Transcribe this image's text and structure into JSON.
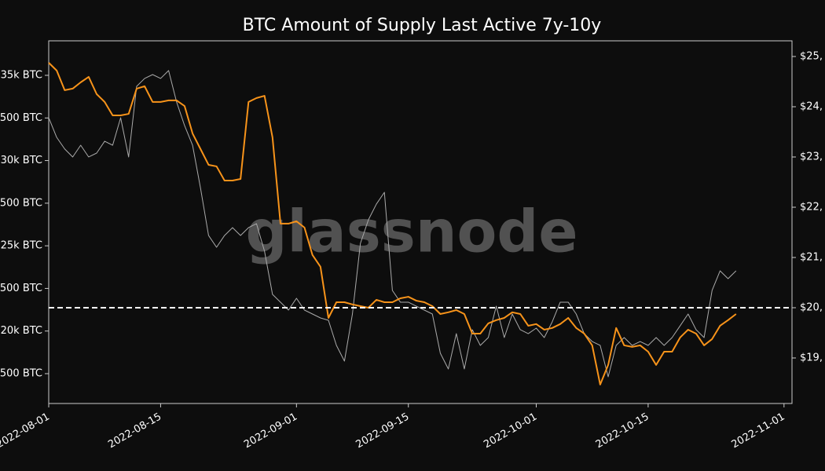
{
  "chart_data": {
    "type": "line",
    "title": "BTC Amount of Supply Last Active 7y-10y",
    "watermark": "glassnode",
    "x": [
      "2022-08-01",
      "2022-08-02",
      "2022-08-03",
      "2022-08-04",
      "2022-08-05",
      "2022-08-06",
      "2022-08-07",
      "2022-08-08",
      "2022-08-09",
      "2022-08-10",
      "2022-08-11",
      "2022-08-12",
      "2022-08-13",
      "2022-08-14",
      "2022-08-15",
      "2022-08-16",
      "2022-08-17",
      "2022-08-18",
      "2022-08-19",
      "2022-08-20",
      "2022-08-21",
      "2022-08-22",
      "2022-08-23",
      "2022-08-24",
      "2022-08-25",
      "2022-08-26",
      "2022-08-27",
      "2022-08-28",
      "2022-08-29",
      "2022-08-30",
      "2022-08-31",
      "2022-09-01",
      "2022-09-02",
      "2022-09-03",
      "2022-09-04",
      "2022-09-05",
      "2022-09-06",
      "2022-09-07",
      "2022-09-08",
      "2022-09-09",
      "2022-09-10",
      "2022-09-11",
      "2022-09-12",
      "2022-09-13",
      "2022-09-14",
      "2022-09-15",
      "2022-09-16",
      "2022-09-17",
      "2022-09-18",
      "2022-09-19",
      "2022-09-20",
      "2022-09-21",
      "2022-09-22",
      "2022-09-23",
      "2022-09-24",
      "2022-09-25",
      "2022-09-26",
      "2022-09-27",
      "2022-09-28",
      "2022-09-29",
      "2022-09-30",
      "2022-10-01",
      "2022-10-02",
      "2022-10-03",
      "2022-10-04",
      "2022-10-05",
      "2022-10-06",
      "2022-10-07",
      "2022-10-08",
      "2022-10-09",
      "2022-10-10",
      "2022-10-11",
      "2022-10-12",
      "2022-10-13",
      "2022-10-14",
      "2022-10-15",
      "2022-10-16",
      "2022-10-17",
      "2022-10-18",
      "2022-10-19",
      "2022-10-20",
      "2022-10-21",
      "2022-10-22",
      "2022-10-23",
      "2022-10-24",
      "2022-10-25",
      "2022-10-26"
    ],
    "xlim": [
      "2022-08-01",
      "2022-11-02"
    ],
    "xticks": [
      "2022-08-01",
      "2022-08-15",
      "2022-09-01",
      "2022-09-15",
      "2022-10-01",
      "2022-10-15",
      "2022-11-01"
    ],
    "ylim": [
      15750,
      37025
    ],
    "yticks": [
      {
        "value": 35000,
        "label": "35k BTC"
      },
      {
        "value": 32500,
        "label": "500 BTC"
      },
      {
        "value": 30000,
        "label": "30k BTC"
      },
      {
        "value": 27500,
        "label": "500 BTC"
      },
      {
        "value": 25000,
        "label": "25k BTC"
      },
      {
        "value": 22500,
        "label": "500 BTC"
      },
      {
        "value": 20000,
        "label": "20k BTC"
      },
      {
        "value": 17500,
        "label": "500 BTC"
      }
    ],
    "y2lim": [
      18094,
      25312
    ],
    "y2ticks": [
      {
        "value": 25000,
        "label": "$25,"
      },
      {
        "value": 24000,
        "label": "$24,"
      },
      {
        "value": 23000,
        "label": "$23,"
      },
      {
        "value": 22000,
        "label": "$22,"
      },
      {
        "value": 21000,
        "label": "$21,"
      },
      {
        "value": 20000,
        "label": "$20,"
      },
      {
        "value": 19000,
        "label": "$19,"
      }
    ],
    "reference_line": {
      "value": 20000,
      "axis": "y2",
      "color": "#ffffff"
    },
    "series": [
      {
        "color": "#aaaaaa",
        "axis": "y2",
        "values": [
          23781,
          23390,
          23160,
          23000,
          23234,
          23000,
          23078,
          23313,
          23234,
          23781,
          23000,
          24406,
          24563,
          24640,
          24563,
          24720,
          24094,
          23625,
          23234,
          22375,
          21438,
          21203,
          21438,
          21594,
          21438,
          21594,
          21672,
          21125,
          20266,
          20110,
          19953,
          20188,
          19953,
          19875,
          19797,
          19750,
          19250,
          18938,
          19875,
          21281,
          21750,
          22063,
          22297,
          20344,
          20110,
          20110,
          20031,
          19953,
          19875,
          19094,
          18781,
          19484,
          18781,
          19563,
          19250,
          19406,
          20031,
          19406,
          19875,
          19563,
          19484,
          19594,
          19406,
          19719,
          20110,
          20110,
          19875,
          19484,
          19328,
          19250,
          18625,
          19250,
          19406,
          19250,
          19328,
          19250,
          19406,
          19250,
          19406,
          19640,
          19875,
          19563,
          19406,
          20344,
          20734,
          20578,
          20734
        ]
      },
      {
        "color": "#f7931a",
        "values": [
          35740,
          35280,
          34130,
          34220,
          34590,
          34910,
          33900,
          33440,
          32650,
          32650,
          32740,
          34220,
          34360,
          33440,
          33440,
          33530,
          33530,
          33200,
          31590,
          30670,
          29750,
          29660,
          28830,
          28830,
          28920,
          33440,
          33670,
          33800,
          31360,
          26300,
          26300,
          26440,
          26070,
          24460,
          23770,
          20770,
          21690,
          21690,
          21560,
          21460,
          21370,
          21830,
          21690,
          21690,
          21920,
          22010,
          21780,
          21690,
          21460,
          21000,
          21100,
          21230,
          21000,
          19850,
          19850,
          20450,
          20640,
          20770,
          21100,
          21000,
          20310,
          20410,
          20080,
          20180,
          20410,
          20770,
          20180,
          19850,
          19160,
          16860,
          18010,
          20180,
          19160,
          19070,
          19160,
          18790,
          18010,
          18790,
          18790,
          19620,
          20080,
          19850,
          19160,
          19530,
          20310,
          20640,
          21000
        ]
      }
    ]
  }
}
